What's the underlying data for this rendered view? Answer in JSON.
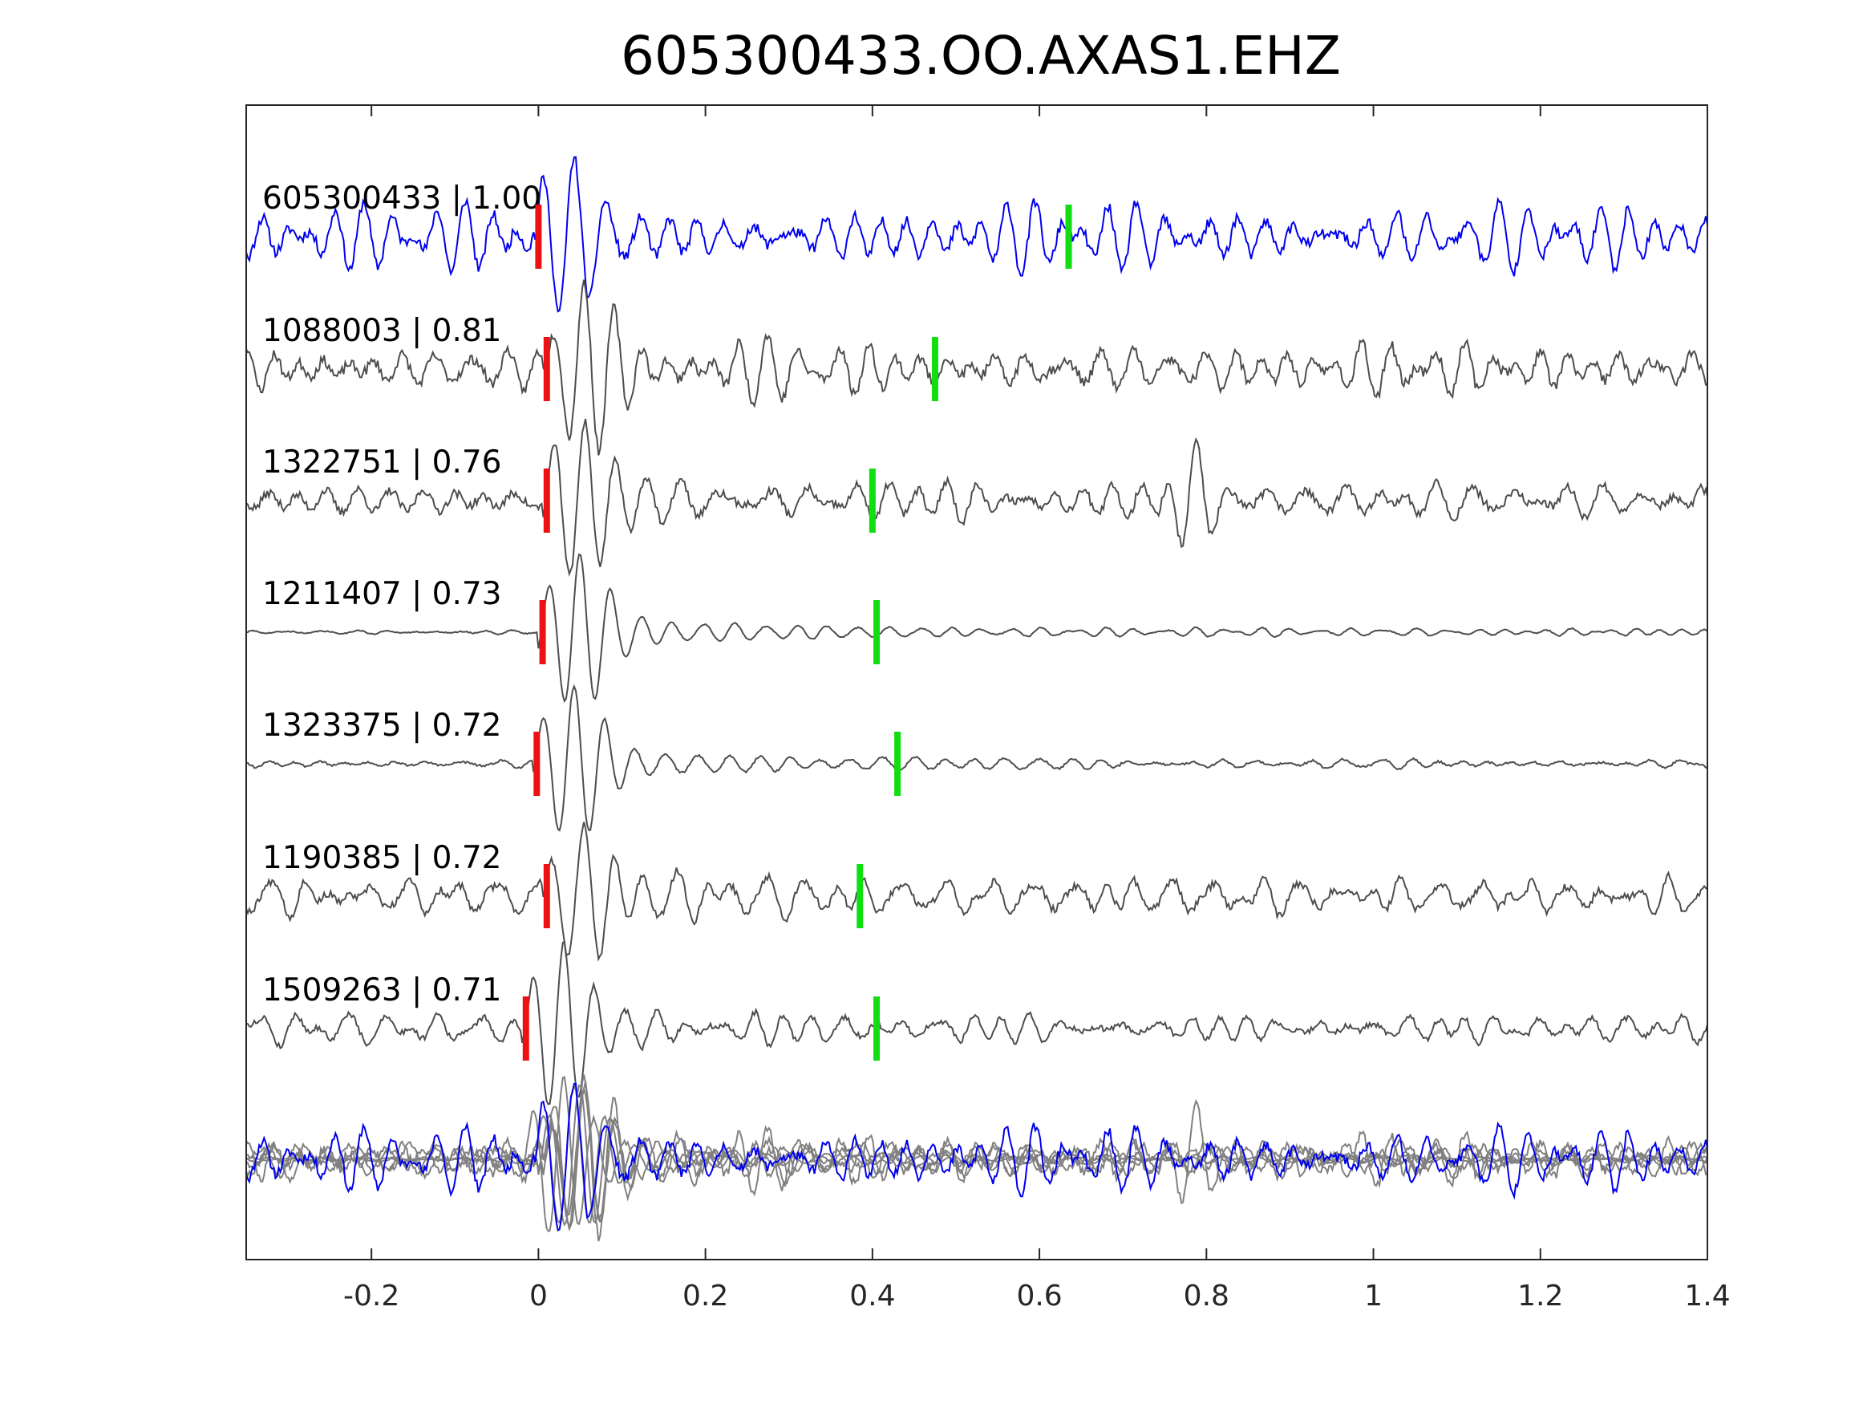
{
  "chart_data": {
    "type": "line",
    "title": "605300433.OO.AXAS1.EHZ",
    "xlabel": "",
    "ylabel": "",
    "xlim": [
      -0.35,
      1.4
    ],
    "xticks": [
      "-0.2",
      "0",
      "0.2",
      "0.4",
      "0.6",
      "0.8",
      "1",
      "1.2",
      "1.4"
    ],
    "xtick_values": [
      -0.2,
      0,
      0.2,
      0.4,
      0.6,
      0.8,
      1,
      1.2,
      1.4
    ],
    "grid": false,
    "legend": "none",
    "colors": {
      "template": "#0000ee",
      "match": "#4d4d4d",
      "overlay": "#808080",
      "p_pick": "#ee1111",
      "s_pick": "#11dd11",
      "axis": "#262626"
    },
    "series": [
      {
        "label": "605300433 | 1.00",
        "correlation": 1.0,
        "p_pick": 0.0,
        "s_pick": 0.635,
        "noise": 0.32,
        "seed": 11,
        "late_burst": null
      },
      {
        "label": "1088003 | 0.81",
        "correlation": 0.81,
        "p_pick": 0.01,
        "s_pick": 0.475,
        "noise": 0.3,
        "seed": 23,
        "late_burst": null
      },
      {
        "label": "1322751 | 0.76",
        "correlation": 0.76,
        "p_pick": 0.01,
        "s_pick": 0.4,
        "noise": 0.24,
        "seed": 37,
        "late_burst": 0.785
      },
      {
        "label": "1211407 | 0.73",
        "correlation": 0.73,
        "p_pick": 0.005,
        "s_pick": 0.405,
        "noise": 0.03,
        "seed": 41,
        "late_burst": null
      },
      {
        "label": "1323375 | 0.72",
        "correlation": 0.72,
        "p_pick": -0.002,
        "s_pick": 0.43,
        "noise": 0.06,
        "seed": 53,
        "late_burst": null
      },
      {
        "label": "1190385 | 0.72",
        "correlation": 0.72,
        "p_pick": 0.01,
        "s_pick": 0.385,
        "noise": 0.2,
        "seed": 67,
        "late_burst": null
      },
      {
        "label": "1509263 | 0.71",
        "correlation": 0.71,
        "p_pick": -0.015,
        "s_pick": 0.405,
        "noise": 0.16,
        "seed": 79,
        "late_burst": null
      }
    ]
  }
}
